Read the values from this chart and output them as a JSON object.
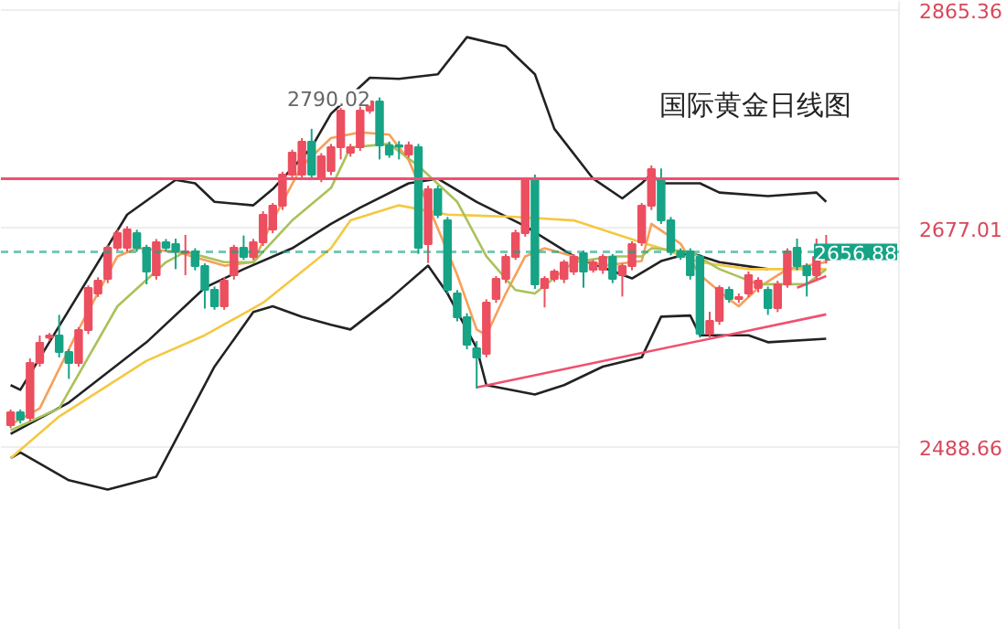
{
  "chart_data": {
    "type": "candlestick",
    "title": "国际黄金日线图",
    "categories": [
      null,
      null,
      null,
      null,
      null,
      null,
      null,
      null,
      null,
      null,
      null,
      null,
      null,
      null,
      null,
      null,
      null,
      null,
      null,
      null,
      null,
      null,
      null,
      null,
      null,
      null,
      null,
      null,
      null,
      null,
      null,
      null,
      null,
      null,
      null,
      null,
      null,
      null,
      null,
      null,
      null,
      null,
      null,
      null,
      null,
      null,
      null,
      null,
      null,
      null,
      null,
      null,
      null,
      null,
      null,
      null,
      null,
      null,
      null,
      null,
      null,
      null,
      null,
      null,
      null,
      null,
      null,
      null,
      null,
      null,
      null,
      null,
      null,
      null,
      null,
      null,
      null,
      null,
      null,
      null,
      null,
      null,
      null,
      null,
      null
    ],
    "ohlc": [
      [
        2507.6,
        2521,
        2505,
        2518.6
      ],
      [
        2518.6,
        2521,
        2509,
        2512.3
      ],
      [
        2513.9,
        2565,
        2511,
        2561.2
      ],
      [
        2561.2,
        2584.8,
        2558,
        2578.5
      ],
      [
        2583,
        2587,
        2580,
        2584.8
      ],
      [
        2584.8,
        2602.6,
        2565.9,
        2570.6
      ],
      [
        2570.6,
        2573,
        2547.4,
        2561.2
      ],
      [
        2561.2,
        2592,
        2558,
        2589.5
      ],
      [
        2589.5,
        2628,
        2586,
        2625.8
      ],
      [
        2621,
        2635,
        2618,
        2632.1
      ],
      [
        2633.7,
        2663,
        2630,
        2660.4
      ],
      [
        2660.4,
        2676.2,
        2658,
        2673.1
      ],
      [
        2660.4,
        2679,
        2657,
        2676.2
      ],
      [
        2673.1,
        2676,
        2657,
        2660.4
      ],
      [
        2660.4,
        2663,
        2628.9,
        2639.9
      ],
      [
        2636.8,
        2668,
        2633,
        2665.2
      ],
      [
        2665.2,
        2668,
        2657,
        2660.4
      ],
      [
        2663.6,
        2668.3,
        2642,
        2657.3
      ],
      [
        2656,
        2671.5,
        2636.8,
        2657.3
      ],
      [
        2657.3,
        2660,
        2641,
        2644.7
      ],
      [
        2644.7,
        2647,
        2608,
        2624.2
      ],
      [
        2624.2,
        2627,
        2607,
        2610
      ],
      [
        2610,
        2635,
        2607,
        2632.1
      ],
      [
        2636.8,
        2663,
        2633,
        2660.4
      ],
      [
        2660.4,
        2671,
        2650,
        2652.6
      ],
      [
        2652.6,
        2668,
        2650,
        2665.2
      ],
      [
        2665.2,
        2692,
        2662,
        2688.8
      ],
      [
        2676.2,
        2699,
        2673,
        2696.7
      ],
      [
        2696.7,
        2726,
        2693,
        2723.5
      ],
      [
        2723.5,
        2745,
        2720,
        2742.4
      ],
      [
        2723.5,
        2755,
        2720,
        2751.9
      ],
      [
        2751.9,
        2763,
        2720,
        2723.5
      ],
      [
        2720.4,
        2742,
        2717,
        2739.2
      ],
      [
        2726.6,
        2750,
        2723,
        2747.1
      ],
      [
        2747.1,
        2781,
        2736.6,
        2778.7
      ],
      [
        2742.4,
        2750,
        2739,
        2747.1
      ],
      [
        2747.1,
        2782,
        2744,
        2778.7
      ],
      [
        2778.7,
        2788,
        2776,
        2786.5
      ],
      [
        2786.5,
        2790.02,
        2736.6,
        2748.7
      ],
      [
        2748.7,
        2752,
        2738,
        2740.8
      ],
      [
        2748.7,
        2752.4,
        2736.6,
        2747.5
      ],
      [
        2740.8,
        2752,
        2738,
        2748.7
      ],
      [
        2747.1,
        2750,
        2655.2,
        2660.4
      ],
      [
        2663.6,
        2714,
        2647.3,
        2710.9
      ],
      [
        2710.9,
        2714,
        2686,
        2688.8
      ],
      [
        2684.1,
        2687,
        2621,
        2624.2
      ],
      [
        2621,
        2624,
        2597,
        2600.6
      ],
      [
        2600.6,
        2604,
        2573,
        2576.9
      ],
      [
        2573.7,
        2580,
        2539.1,
        2565.9
      ],
      [
        2569,
        2616,
        2566,
        2613.2
      ],
      [
        2616.3,
        2636,
        2613,
        2633.7
      ],
      [
        2633.7,
        2655,
        2630,
        2652.6
      ],
      [
        2652.6,
        2676,
        2650,
        2673.1
      ],
      [
        2673.1,
        2720.9,
        2670,
        2718.8
      ],
      [
        2718.8,
        2723.5,
        2625,
        2628.9
      ],
      [
        2625.8,
        2636,
        2609,
        2633.7
      ],
      [
        2633.7,
        2642,
        2631,
        2639.9
      ],
      [
        2633.7,
        2650,
        2630,
        2647.8
      ],
      [
        2639.9,
        2655,
        2637,
        2652.6
      ],
      [
        2655.7,
        2658,
        2626,
        2639.9
      ],
      [
        2641.5,
        2650,
        2639,
        2647.8
      ],
      [
        2641.5,
        2655,
        2638,
        2652.6
      ],
      [
        2652.6,
        2655,
        2630,
        2633.7
      ],
      [
        2636.8,
        2647,
        2618.4,
        2644.7
      ],
      [
        2644.7,
        2666,
        2641,
        2663.6
      ],
      [
        2665.2,
        2699,
        2662,
        2696.7
      ],
      [
        2696.7,
        2731.4,
        2693,
        2728.2
      ],
      [
        2720.4,
        2728.8,
        2681,
        2684.1
      ],
      [
        2684.1,
        2687,
        2654,
        2657.3
      ],
      [
        2657.3,
        2660,
        2650,
        2652.6
      ],
      [
        2657.3,
        2660,
        2633,
        2636.8
      ],
      [
        2652.6,
        2655,
        2583,
        2586.4
      ],
      [
        2586.4,
        2605.3,
        2583,
        2597.4
      ],
      [
        2597.4,
        2628,
        2594,
        2625.8
      ],
      [
        2624.2,
        2627,
        2613,
        2616.3
      ],
      [
        2616.3,
        2621,
        2613,
        2617.9
      ],
      [
        2621,
        2640,
        2618,
        2636.8
      ],
      [
        2625.8,
        2635,
        2622,
        2632.1
      ],
      [
        2624.2,
        2627,
        2602.6,
        2608.4
      ],
      [
        2608.4,
        2632,
        2605,
        2628.9
      ],
      [
        2628.9,
        2660,
        2626,
        2657.3
      ],
      [
        2660.4,
        2668.3,
        2641,
        2644.7
      ],
      [
        2644.7,
        2647,
        2618.4,
        2636.8
      ],
      [
        2636.8,
        2668.3,
        2633,
        2652.6
      ],
      [
        2650,
        2671.5,
        2647,
        2656.88
      ]
    ],
    "colors": [
      "#ec4f5f",
      "#17a386",
      "#ec4f5f",
      "#ec4f5f",
      "#ec4f5f",
      "#17a386",
      "#17a386",
      "#ec4f5f",
      "#ec4f5f",
      "#ec4f5f",
      "#ec4f5f",
      "#ec4f5f",
      "#ec4f5f",
      "#17a386",
      "#17a386",
      "#ec4f5f",
      "#17a386",
      "#17a386",
      "#ec4f5f",
      "#17a386",
      "#17a386",
      "#17a386",
      "#ec4f5f",
      "#ec4f5f",
      "#17a386",
      "#ec4f5f",
      "#ec4f5f",
      "#ec4f5f",
      "#ec4f5f",
      "#ec4f5f",
      "#ec4f5f",
      "#17a386",
      "#ec4f5f",
      "#ec4f5f",
      "#ec4f5f",
      "#ec4f5f",
      "#ec4f5f",
      "#ec4f5f",
      "#17a386",
      "#17a386",
      "#17a386",
      "#ec4f5f",
      "#17a386",
      "#ec4f5f",
      "#17a386",
      "#17a386",
      "#17a386",
      "#17a386",
      "#17a386",
      "#ec4f5f",
      "#ec4f5f",
      "#ec4f5f",
      "#ec4f5f",
      "#ec4f5f",
      "#17a386",
      "#ec4f5f",
      "#ec4f5f",
      "#ec4f5f",
      "#ec4f5f",
      "#17a386",
      "#ec4f5f",
      "#ec4f5f",
      "#17a386",
      "#ec4f5f",
      "#ec4f5f",
      "#ec4f5f",
      "#ec4f5f",
      "#17a386",
      "#17a386",
      "#17a386",
      "#17a386",
      "#17a386",
      "#ec4f5f",
      "#ec4f5f",
      "#17a386",
      "#ec4f5f",
      "#ec4f5f",
      "#ec4f5f",
      "#17a386",
      "#ec4f5f",
      "#ec4f5f",
      "#17a386",
      "#17a386",
      "#ec4f5f",
      "#ec4f5f"
    ],
    "series": [
      {
        "type": "line",
        "color": "#222222",
        "values": [
          2542,
          2538,
          null,
          null,
          null,
          null,
          null,
          null,
          null,
          null,
          null,
          null,
          2689,
          null,
          null,
          null,
          null,
          2719,
          null,
          2716,
          null,
          2700,
          null,
          null,
          null,
          2697,
          null,
          2711,
          null,
          null,
          null,
          2747,
          null,
          2776,
          null,
          null,
          null,
          2807,
          null,
          null,
          2806,
          null,
          null,
          null,
          2810,
          null,
          null,
          2842,
          null,
          null,
          null,
          2834,
          null,
          null,
          2810,
          null,
          2763,
          null,
          null,
          null,
          2720,
          null,
          null,
          2703,
          null,
          2716,
          2724,
          2716,
          null,
          null,
          null,
          2716,
          null,
          2708,
          null,
          null,
          null,
          null,
          2705,
          null,
          null,
          null,
          null,
          2708,
          2700
        ]
      },
      {
        "type": "line",
        "color": "#222222",
        "values": [
          2479,
          2484,
          null,
          null,
          null,
          null,
          2460,
          null,
          null,
          null,
          2452,
          null,
          null,
          null,
          null,
          2463,
          null,
          null,
          null,
          null,
          null,
          2558,
          null,
          null,
          null,
          2605,
          null,
          2610,
          null,
          null,
          2601,
          null,
          null,
          2594,
          null,
          2590,
          null,
          null,
          null,
          2616,
          null,
          null,
          null,
          2645,
          null,
          2621,
          null,
          null,
          2574,
          2542,
          null,
          null,
          null,
          null,
          2534,
          null,
          null,
          2542,
          null,
          null,
          null,
          2558,
          null,
          null,
          null,
          2566,
          null,
          2601,
          null,
          null,
          2602,
          2585,
          null,
          null,
          null,
          null,
          2585,
          null,
          2579,
          null,
          null,
          null,
          null,
          null,
          2582
        ]
      },
      {
        "type": "line",
        "color": "#222222",
        "values": [
          2500,
          null,
          null,
          null,
          null,
          null,
          2527,
          null,
          null,
          null,
          null,
          null,
          null,
          null,
          2579,
          null,
          null,
          null,
          null,
          null,
          2626,
          null,
          null,
          null,
          2642,
          null,
          null,
          null,
          null,
          2660,
          null,
          null,
          null,
          2681,
          null,
          null,
          2695,
          null,
          null,
          null,
          null,
          2716,
          null,
          null,
          2720,
          null,
          null,
          null,
          2700,
          null,
          null,
          null,
          null,
          2679,
          null,
          null,
          null,
          null,
          2653,
          null,
          null,
          null,
          null,
          null,
          2634,
          null,
          null,
          2649,
          null,
          null,
          2656,
          null,
          null,
          2648,
          null,
          null,
          null,
          null,
          2642,
          null,
          null,
          null,
          null,
          null,
          null
        ]
      },
      {
        "type": "line",
        "color": "#f5c842",
        "values": [
          2479,
          null,
          null,
          null,
          null,
          2515,
          null,
          null,
          null,
          null,
          null,
          null,
          null,
          null,
          2563,
          null,
          null,
          null,
          null,
          null,
          2585,
          null,
          null,
          null,
          null,
          null,
          2613,
          null,
          null,
          null,
          null,
          null,
          null,
          2660,
          null,
          2684,
          null,
          null,
          null,
          null,
          2697,
          null,
          null,
          null,
          null,
          2689,
          null,
          null,
          null,
          null,
          null,
          null,
          2687,
          null,
          null,
          null,
          null,
          null,
          2684,
          null,
          null,
          null,
          null,
          null,
          null,
          2665,
          null,
          2660,
          null,
          null,
          null,
          2648,
          null,
          null,
          null,
          null,
          2642,
          null,
          null,
          null,
          null,
          null,
          null,
          null,
          2642
        ]
      },
      {
        "type": "line",
        "color": "#f7a05a",
        "values": [
          2508,
          null,
          null,
          2522,
          null,
          null,
          null,
          2590,
          null,
          null,
          null,
          2653,
          null,
          2660,
          null,
          null,
          null,
          2657,
          null,
          null,
          null,
          null,
          2645,
          null,
          null,
          2648,
          null,
          2684,
          null,
          null,
          2731,
          null,
          null,
          2755,
          null,
          null,
          2760,
          null,
          null,
          2758,
          null,
          2736,
          null,
          2697,
          null,
          null,
          2637,
          null,
          2590,
          2585,
          null,
          2621,
          null,
          2653,
          null,
          2660,
          null,
          null,
          2653,
          null,
          null,
          2645,
          null,
          null,
          null,
          2649,
          2681,
          null,
          null,
          2664,
          null,
          2637,
          null,
          null,
          2616,
          2610,
          null,
          2626,
          null,
          null,
          2642,
          null,
          null,
          null,
          2648
        ]
      },
      {
        "type": "line",
        "color": "#a9c25a",
        "values": [
          2503,
          null,
          null,
          null,
          null,
          2522,
          null,
          null,
          null,
          null,
          null,
          2610,
          null,
          null,
          null,
          null,
          2648,
          null,
          2657,
          null,
          null,
          null,
          2648,
          null,
          null,
          2648,
          null,
          null,
          null,
          2684,
          null,
          null,
          null,
          2712,
          null,
          2747,
          null,
          null,
          null,
          2750,
          null,
          null,
          2731,
          null,
          null,
          null,
          2700,
          null,
          null,
          2653,
          null,
          null,
          2624,
          null,
          2621,
          null,
          null,
          null,
          2648,
          null,
          null,
          null,
          2653,
          null,
          null,
          2653,
          2660,
          null,
          null,
          null,
          2657,
          null,
          null,
          2642,
          null,
          null,
          null,
          2629,
          null,
          null,
          null,
          null,
          2629,
          null,
          2642
        ]
      },
      {
        "type": "line",
        "color": "#f0506e",
        "values": [
          null,
          null,
          null,
          null,
          null,
          null,
          null,
          null,
          null,
          null,
          null,
          null,
          null,
          null,
          null,
          null,
          null,
          null,
          null,
          null,
          null,
          null,
          null,
          null,
          null,
          null,
          null,
          null,
          null,
          null,
          null,
          null,
          null,
          null,
          null,
          null,
          null,
          null,
          null,
          null,
          null,
          null,
          null,
          null,
          null,
          null,
          null,
          null,
          2540,
          null,
          null,
          null,
          null,
          null,
          null,
          null,
          null,
          null,
          null,
          null,
          null,
          null,
          null,
          null,
          null,
          null,
          null,
          null,
          null,
          null,
          null,
          null,
          null,
          null,
          null,
          null,
          null,
          null,
          null,
          null,
          null,
          null,
          null,
          null,
          2603
        ]
      },
      {
        "type": "line",
        "color": "#f0506e",
        "values": [
          null,
          null,
          null,
          null,
          null,
          null,
          null,
          null,
          null,
          null,
          null,
          null,
          null,
          null,
          null,
          null,
          null,
          null,
          null,
          null,
          null,
          null,
          null,
          null,
          null,
          null,
          null,
          null,
          null,
          null,
          null,
          null,
          null,
          null,
          null,
          null,
          null,
          null,
          null,
          null,
          null,
          null,
          null,
          null,
          null,
          null,
          null,
          null,
          null,
          null,
          null,
          null,
          null,
          null,
          null,
          null,
          null,
          null,
          null,
          null,
          null,
          null,
          null,
          null,
          null,
          null,
          null,
          null,
          null,
          null,
          null,
          null,
          null,
          null,
          null,
          null,
          null,
          null,
          null,
          null,
          null,
          2626,
          null,
          null,
          2636
        ]
      }
    ],
    "ylim": [
      2331.0,
      2873.24
    ],
    "yticks": [
      2865.36,
      2677.01,
      2488.66
    ],
    "ref_lines": [
      {
        "axis": "y",
        "value": 2656.88,
        "label": "2656.88",
        "color": "#17a386",
        "line_style": "dashed"
      },
      {
        "axis": "y",
        "value": 2720,
        "color": "#f0506e",
        "line_style": "solid"
      }
    ],
    "annotations": [
      "2790.02"
    ],
    "grid": "y",
    "tick_labels": "y"
  }
}
